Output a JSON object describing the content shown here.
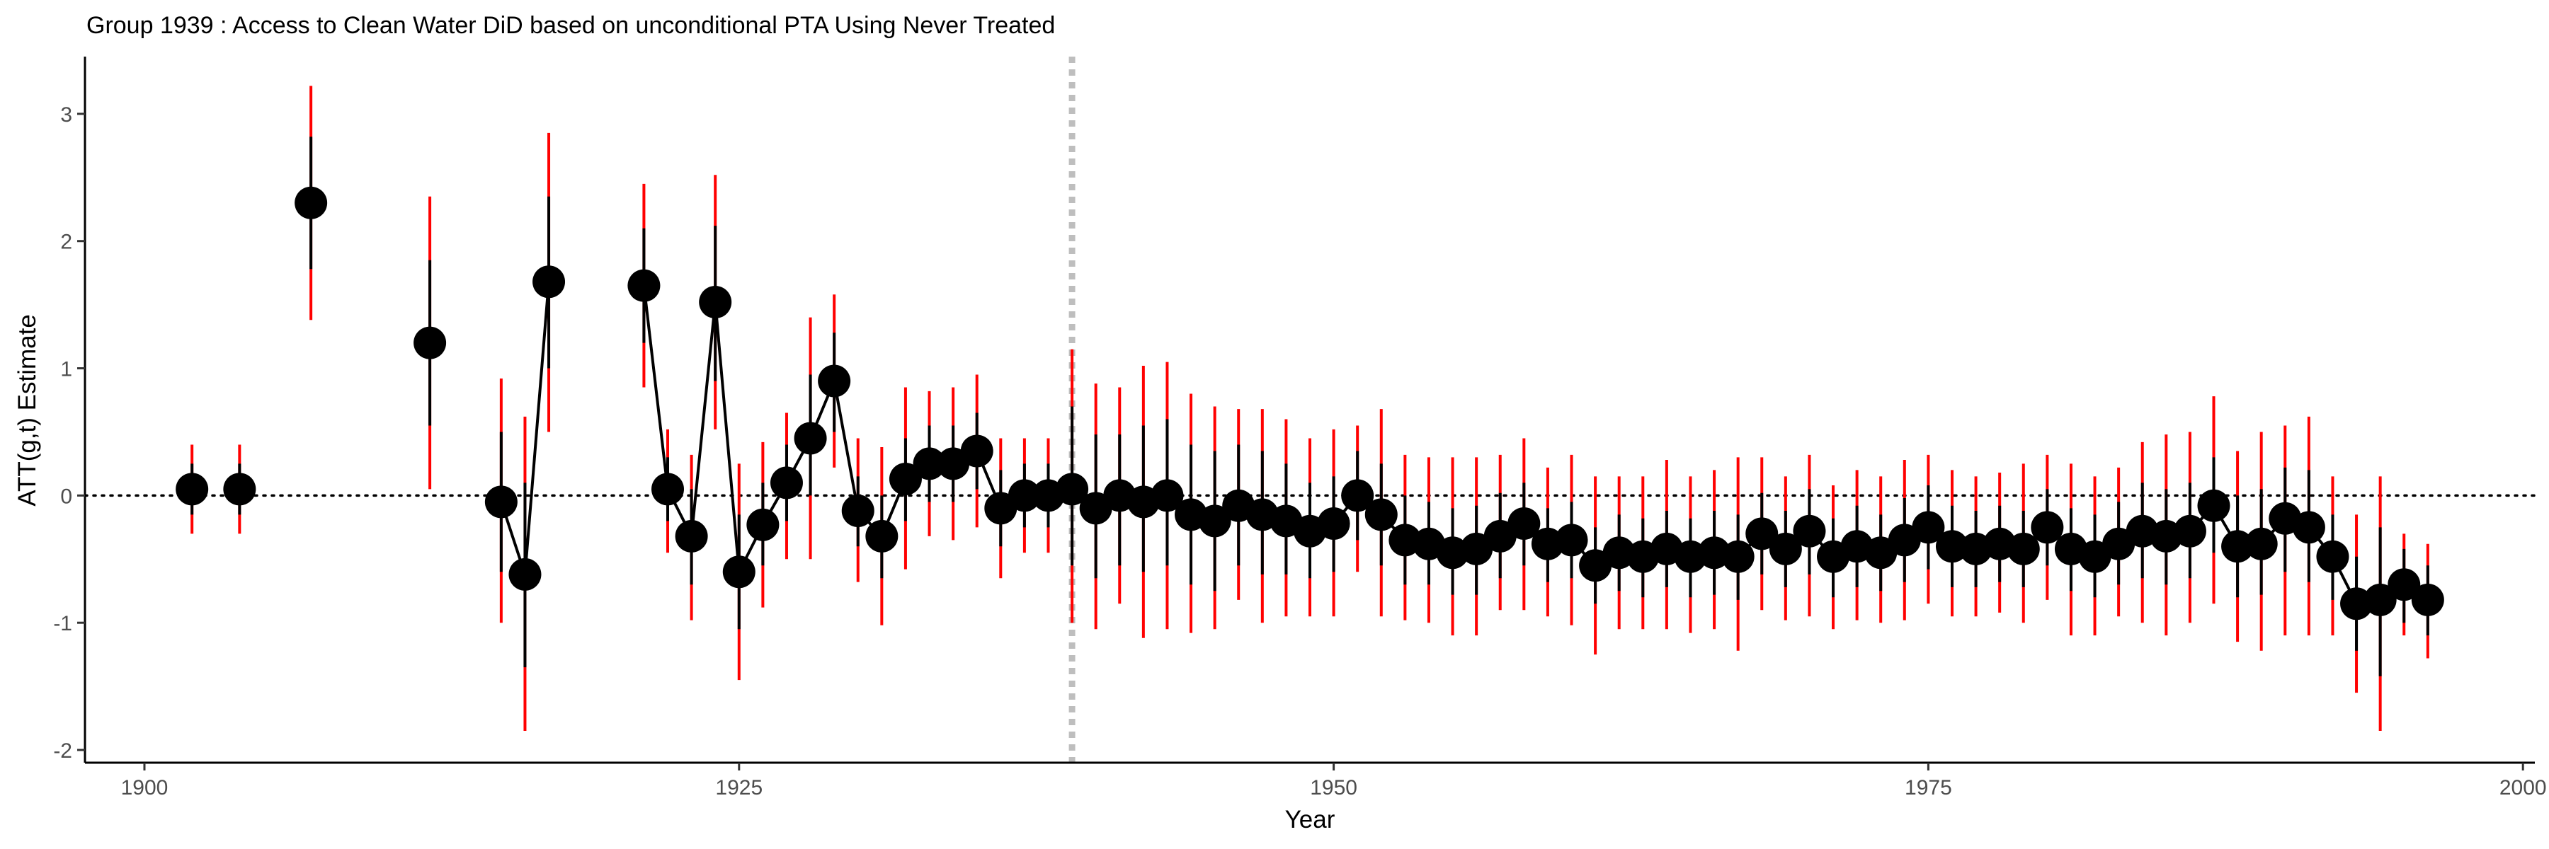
{
  "chart_data": {
    "type": "scatter",
    "title": "Group 1939 :  Access to Clean Water DiD based on unconditional PTA Using Never Treated",
    "xlabel": "Year",
    "ylabel": "ATT(g,t) Estimate",
    "xlim": [
      1897.5,
      2000.5
    ],
    "ylim": [
      -2.1,
      3.45
    ],
    "xticks": [
      1900,
      1925,
      1950,
      1975,
      2000
    ],
    "yticks": [
      -2,
      -1,
      0,
      1,
      2,
      3
    ],
    "treatment_year": 1939,
    "reference_line_y": 0,
    "grid": false,
    "legend": "none",
    "colors": {
      "point": "#000000",
      "ci_pointwise": "#000000",
      "ci_uniform": "#ff0000",
      "treatment_line": "#bebebe"
    },
    "series": [
      {
        "columns": [
          "year",
          "att",
          "ci_low",
          "ci_high",
          "uniform_low",
          "uniform_high"
        ],
        "points": [
          [
            1902,
            0.05,
            -0.15,
            0.25,
            -0.3,
            0.4
          ],
          [
            1904,
            0.05,
            -0.15,
            0.25,
            -0.3,
            0.4
          ],
          [
            1907,
            2.3,
            1.78,
            2.82,
            1.38,
            3.22
          ],
          [
            1912,
            1.2,
            0.55,
            1.85,
            0.05,
            2.35
          ],
          [
            1915,
            -0.05,
            -0.6,
            0.5,
            -1.0,
            0.92
          ],
          [
            1916,
            -0.62,
            -1.35,
            0.1,
            -1.85,
            0.62
          ],
          [
            1917,
            1.68,
            1.0,
            2.35,
            0.5,
            2.85
          ],
          [
            1921,
            1.65,
            1.2,
            2.1,
            0.85,
            2.45
          ],
          [
            1922,
            0.05,
            -0.2,
            0.3,
            -0.45,
            0.52
          ],
          [
            1923,
            -0.32,
            -0.7,
            0.05,
            -0.98,
            0.32
          ],
          [
            1924,
            1.52,
            0.9,
            2.12,
            0.52,
            2.52
          ],
          [
            1925,
            -0.6,
            -1.05,
            -0.15,
            -1.45,
            0.25
          ],
          [
            1926,
            -0.23,
            -0.55,
            0.1,
            -0.88,
            0.42
          ],
          [
            1927,
            0.1,
            -0.2,
            0.4,
            -0.5,
            0.65
          ],
          [
            1928,
            0.45,
            0.0,
            0.95,
            -0.5,
            1.4
          ],
          [
            1929,
            0.9,
            0.5,
            1.28,
            0.22,
            1.58
          ],
          [
            1930,
            -0.12,
            -0.4,
            0.15,
            -0.68,
            0.45
          ],
          [
            1931,
            -0.32,
            -0.65,
            0.0,
            -1.02,
            0.38
          ],
          [
            1932,
            0.13,
            -0.2,
            0.45,
            -0.58,
            0.85
          ],
          [
            1933,
            0.25,
            -0.05,
            0.55,
            -0.32,
            0.82
          ],
          [
            1934,
            0.25,
            -0.05,
            0.55,
            -0.35,
            0.85
          ],
          [
            1935,
            0.35,
            0.05,
            0.65,
            -0.25,
            0.95
          ],
          [
            1936,
            -0.1,
            -0.4,
            0.2,
            -0.65,
            0.45
          ],
          [
            1937,
            0.0,
            -0.25,
            0.25,
            -0.45,
            0.45
          ],
          [
            1938,
            0.0,
            -0.25,
            0.25,
            -0.45,
            0.45
          ],
          [
            1939,
            0.05,
            -0.55,
            0.7,
            -1.0,
            1.15
          ],
          [
            1940,
            -0.1,
            -0.65,
            0.48,
            -1.05,
            0.88
          ],
          [
            1941,
            0.0,
            -0.55,
            0.48,
            -0.85,
            0.85
          ],
          [
            1942,
            -0.05,
            -0.6,
            0.55,
            -1.12,
            1.02
          ],
          [
            1943,
            0.0,
            -0.55,
            0.6,
            -1.05,
            1.05
          ],
          [
            1944,
            -0.15,
            -0.7,
            0.4,
            -1.08,
            0.8
          ],
          [
            1945,
            -0.2,
            -0.75,
            0.35,
            -1.05,
            0.7
          ],
          [
            1946,
            -0.08,
            -0.55,
            0.4,
            -0.82,
            0.68
          ],
          [
            1947,
            -0.15,
            -0.62,
            0.35,
            -1.0,
            0.68
          ],
          [
            1948,
            -0.2,
            -0.62,
            0.25,
            -0.95,
            0.6
          ],
          [
            1949,
            -0.28,
            -0.65,
            0.1,
            -0.95,
            0.45
          ],
          [
            1950,
            -0.22,
            -0.6,
            0.15,
            -0.95,
            0.52
          ],
          [
            1951,
            0.0,
            -0.35,
            0.35,
            -0.6,
            0.55
          ],
          [
            1952,
            -0.15,
            -0.55,
            0.25,
            -0.95,
            0.68
          ],
          [
            1953,
            -0.35,
            -0.7,
            0.0,
            -0.98,
            0.32
          ],
          [
            1954,
            -0.38,
            -0.7,
            -0.05,
            -1.0,
            0.3
          ],
          [
            1955,
            -0.45,
            -0.78,
            -0.1,
            -1.1,
            0.3
          ],
          [
            1956,
            -0.42,
            -0.78,
            -0.08,
            -1.1,
            0.3
          ],
          [
            1957,
            -0.32,
            -0.65,
            0.02,
            -0.9,
            0.32
          ],
          [
            1958,
            -0.22,
            -0.55,
            0.1,
            -0.9,
            0.45
          ],
          [
            1959,
            -0.38,
            -0.68,
            -0.1,
            -0.95,
            0.22
          ],
          [
            1960,
            -0.35,
            -0.65,
            -0.05,
            -1.02,
            0.32
          ],
          [
            1961,
            -0.55,
            -0.85,
            -0.25,
            -1.25,
            0.15
          ],
          [
            1962,
            -0.45,
            -0.75,
            -0.15,
            -1.05,
            0.15
          ],
          [
            1963,
            -0.48,
            -0.8,
            -0.18,
            -1.05,
            0.15
          ],
          [
            1964,
            -0.42,
            -0.72,
            -0.12,
            -1.05,
            0.28
          ],
          [
            1965,
            -0.48,
            -0.8,
            -0.18,
            -1.08,
            0.15
          ],
          [
            1966,
            -0.45,
            -0.78,
            -0.12,
            -1.05,
            0.2
          ],
          [
            1967,
            -0.48,
            -0.82,
            -0.15,
            -1.22,
            0.3
          ],
          [
            1968,
            -0.3,
            -0.62,
            0.02,
            -0.9,
            0.3
          ],
          [
            1969,
            -0.42,
            -0.72,
            -0.12,
            -0.98,
            0.15
          ],
          [
            1970,
            -0.28,
            -0.62,
            0.05,
            -0.95,
            0.32
          ],
          [
            1971,
            -0.48,
            -0.8,
            -0.18,
            -1.05,
            0.08
          ],
          [
            1972,
            -0.4,
            -0.72,
            -0.08,
            -0.98,
            0.2
          ],
          [
            1973,
            -0.45,
            -0.75,
            -0.15,
            -1.0,
            0.15
          ],
          [
            1974,
            -0.35,
            -0.68,
            -0.02,
            -0.98,
            0.28
          ],
          [
            1975,
            -0.25,
            -0.58,
            0.08,
            -0.85,
            0.32
          ],
          [
            1976,
            -0.4,
            -0.72,
            -0.08,
            -0.95,
            0.2
          ],
          [
            1977,
            -0.42,
            -0.72,
            -0.12,
            -0.95,
            0.15
          ],
          [
            1978,
            -0.38,
            -0.68,
            -0.08,
            -0.92,
            0.18
          ],
          [
            1979,
            -0.42,
            -0.72,
            -0.12,
            -1.0,
            0.25
          ],
          [
            1980,
            -0.25,
            -0.55,
            0.05,
            -0.82,
            0.32
          ],
          [
            1981,
            -0.42,
            -0.75,
            -0.1,
            -1.1,
            0.25
          ],
          [
            1982,
            -0.48,
            -0.8,
            -0.15,
            -1.1,
            0.15
          ],
          [
            1983,
            -0.38,
            -0.7,
            -0.05,
            -0.95,
            0.22
          ],
          [
            1984,
            -0.28,
            -0.65,
            0.1,
            -1.0,
            0.42
          ],
          [
            1985,
            -0.32,
            -0.7,
            0.05,
            -1.1,
            0.48
          ],
          [
            1986,
            -0.28,
            -0.65,
            0.1,
            -1.0,
            0.5
          ],
          [
            1987,
            -0.08,
            -0.45,
            0.3,
            -0.85,
            0.78
          ],
          [
            1988,
            -0.4,
            -0.8,
            0.0,
            -1.15,
            0.35
          ],
          [
            1989,
            -0.38,
            -0.78,
            0.05,
            -1.22,
            0.5
          ],
          [
            1990,
            -0.18,
            -0.6,
            0.22,
            -1.1,
            0.55
          ],
          [
            1991,
            -0.25,
            -0.68,
            0.2,
            -1.1,
            0.62
          ],
          [
            1992,
            -0.48,
            -0.82,
            -0.15,
            -1.1,
            0.15
          ],
          [
            1993,
            -0.85,
            -1.22,
            -0.48,
            -1.55,
            -0.15
          ],
          [
            1994,
            -0.82,
            -1.42,
            -0.25,
            -1.85,
            0.15
          ],
          [
            1995,
            -0.7,
            -1.0,
            -0.42,
            -1.1,
            -0.3
          ],
          [
            1996,
            -0.82,
            -1.1,
            -0.55,
            -1.28,
            -0.38
          ]
        ]
      }
    ]
  }
}
